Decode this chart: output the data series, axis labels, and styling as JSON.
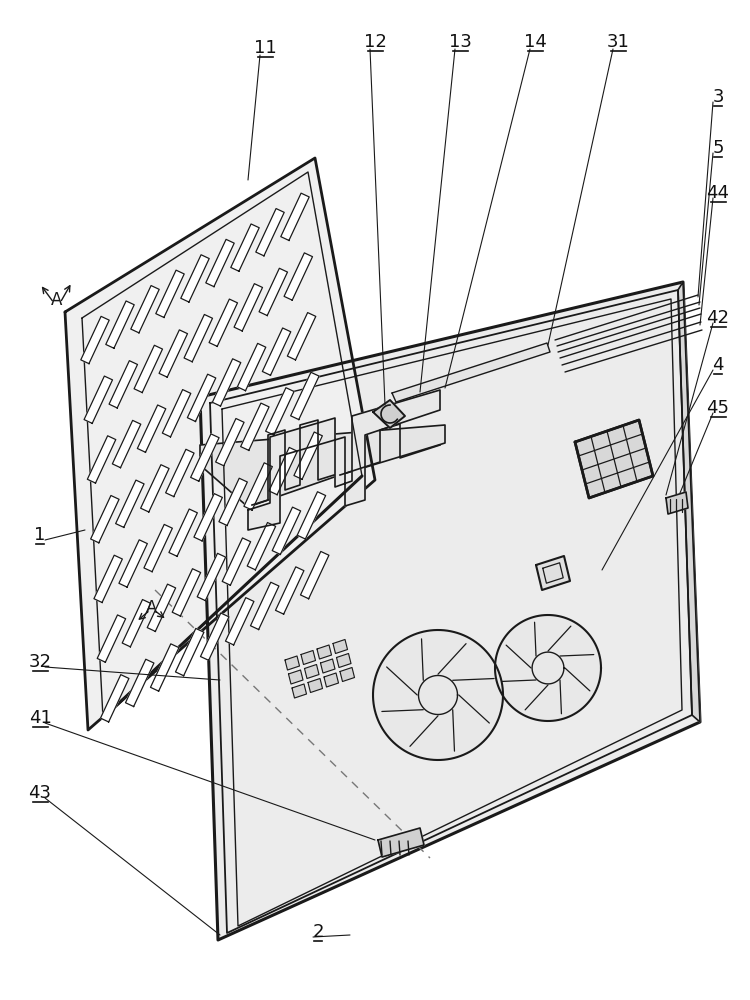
{
  "background_color": "#ffffff",
  "line_color": "#1a1a1a",
  "label_color": "#111111",
  "dashed_color": "#777777",
  "figsize": [
    7.5,
    10.0
  ],
  "dpi": 100,
  "labels": [
    [
      "11",
      265,
      48
    ],
    [
      "12",
      375,
      42
    ],
    [
      "13",
      460,
      42
    ],
    [
      "14",
      535,
      42
    ],
    [
      "31",
      618,
      42
    ],
    [
      "3",
      718,
      97
    ],
    [
      "5",
      718,
      148
    ],
    [
      "44",
      718,
      193
    ],
    [
      "42",
      718,
      318
    ],
    [
      "4",
      718,
      365
    ],
    [
      "45",
      718,
      408
    ],
    [
      "1",
      40,
      535
    ],
    [
      "32",
      40,
      662
    ],
    [
      "41",
      40,
      718
    ],
    [
      "43",
      40,
      793
    ],
    [
      "2",
      318,
      932
    ]
  ]
}
